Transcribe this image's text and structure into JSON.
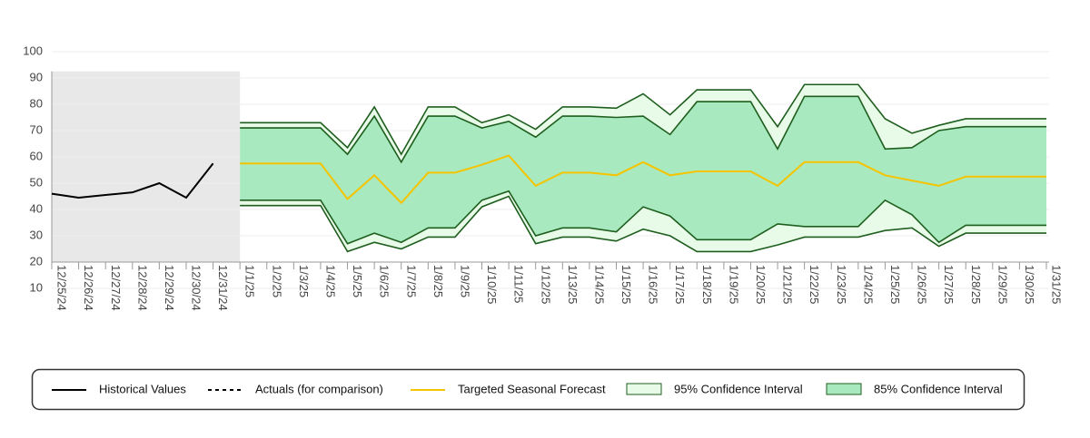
{
  "chart_data": {
    "type": "line",
    "categories": [
      "12/25/24",
      "12/26/24",
      "12/27/24",
      "12/28/24",
      "12/29/24",
      "12/30/24",
      "12/31/24",
      "1/1/25",
      "1/2/25",
      "1/3/25",
      "1/4/25",
      "1/5/25",
      "1/6/25",
      "1/7/25",
      "1/8/25",
      "1/9/25",
      "1/10/25",
      "1/11/25",
      "1/12/25",
      "1/13/25",
      "1/14/25",
      "1/15/25",
      "1/16/25",
      "1/17/25",
      "1/18/25",
      "1/19/25",
      "1/20/25",
      "1/21/25",
      "1/22/25",
      "1/23/25",
      "1/24/25",
      "1/25/25",
      "1/26/25",
      "1/27/25",
      "1/28/25",
      "1/29/25",
      "1/30/25",
      "1/31/25"
    ],
    "ylim": [
      10,
      100
    ],
    "yticks": [
      10,
      20,
      30,
      40,
      50,
      60,
      70,
      80,
      90,
      100
    ],
    "grid": true,
    "series": [
      {
        "name": "Historical Values",
        "color": "#000000",
        "values": [
          46,
          44.5,
          45.5,
          46.5,
          50,
          44.5,
          57.5,
          null,
          null,
          null,
          null,
          null,
          null,
          null,
          null,
          null,
          null,
          null,
          null,
          null,
          null,
          null,
          null,
          null,
          null,
          null,
          null,
          null,
          null,
          null,
          null,
          null,
          null,
          null,
          null,
          null,
          null,
          null
        ]
      },
      {
        "name": "Actuals (for comparison)",
        "color": "#000000",
        "dash": true,
        "values": [
          null,
          null,
          null,
          null,
          null,
          null,
          null,
          null,
          null,
          null,
          null,
          null,
          null,
          null,
          null,
          null,
          null,
          null,
          null,
          null,
          null,
          null,
          null,
          null,
          null,
          null,
          null,
          null,
          null,
          null,
          null,
          null,
          null,
          null,
          null,
          null,
          null,
          null
        ]
      },
      {
        "name": "Targeted Seasonal Forecast",
        "color": "#f5c400",
        "values": [
          null,
          null,
          null,
          null,
          null,
          null,
          null,
          57.5,
          57.5,
          57.5,
          57.5,
          44,
          53,
          42.5,
          54,
          54,
          57,
          60.5,
          49,
          54,
          54,
          53,
          58,
          53,
          54.5,
          54.5,
          54.5,
          49,
          58,
          58,
          58,
          53,
          51,
          49,
          52.5,
          52.5,
          52.5,
          52.5
        ]
      },
      {
        "name": "95% Confidence Interval",
        "type": "band",
        "color": "#e8fae8",
        "line_color": "#1e5e1e",
        "upper": [
          null,
          null,
          null,
          null,
          null,
          null,
          null,
          73,
          73,
          73,
          73,
          63.5,
          79,
          61,
          79,
          79,
          73,
          76,
          70.5,
          79,
          79,
          78.5,
          84,
          76,
          85.5,
          85.5,
          85.5,
          71.5,
          87.5,
          87.5,
          87.5,
          74.5,
          69,
          72,
          74.5,
          74.5,
          74.5,
          74.5
        ],
        "lower": [
          null,
          null,
          null,
          null,
          null,
          null,
          null,
          41.5,
          41.5,
          41.5,
          41.5,
          24,
          27.5,
          25,
          29.5,
          29.5,
          41,
          45,
          27,
          29.5,
          29.5,
          28,
          32.5,
          30,
          24,
          24,
          24,
          26.5,
          29.5,
          29.5,
          29.5,
          32,
          33,
          26,
          31,
          31,
          31,
          31
        ]
      },
      {
        "name": "85% Confidence Interval",
        "type": "band",
        "color": "#a9e9bf",
        "line_color": "#1e5e1e",
        "upper": [
          null,
          null,
          null,
          null,
          null,
          null,
          null,
          71,
          71,
          71,
          71,
          61,
          75.5,
          58,
          75.5,
          75.5,
          71,
          73.5,
          67.5,
          75.5,
          75.5,
          75,
          75.5,
          68.5,
          81,
          81,
          81,
          63,
          83,
          83,
          83,
          63,
          63.5,
          70,
          71.5,
          71.5,
          71.5,
          71.5
        ],
        "lower": [
          null,
          null,
          null,
          null,
          null,
          null,
          null,
          43.5,
          43.5,
          43.5,
          43.5,
          27,
          31,
          27.5,
          33,
          33,
          43.5,
          47,
          30,
          33,
          33,
          31.5,
          41,
          37.5,
          28.5,
          28.5,
          28.5,
          34.5,
          33.5,
          33.5,
          33.5,
          43.5,
          38,
          27.5,
          34,
          34,
          34,
          34
        ]
      }
    ]
  }
}
